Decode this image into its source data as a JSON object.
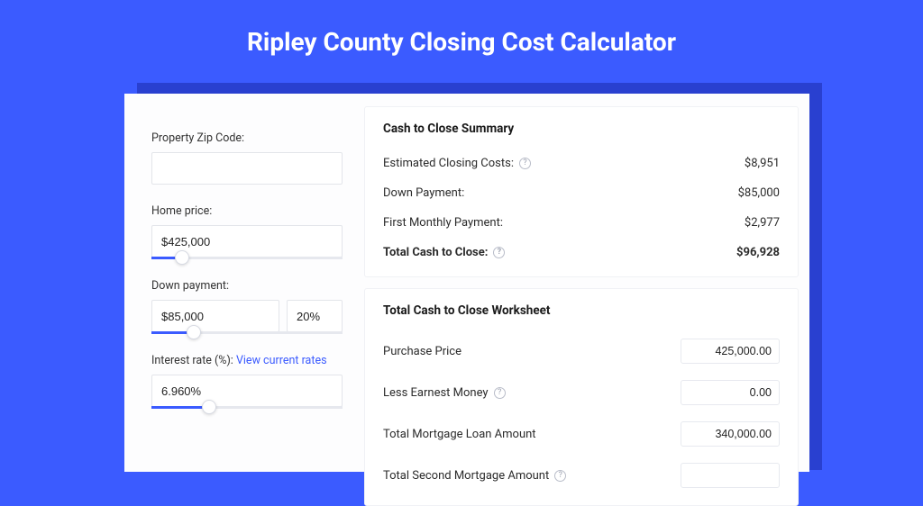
{
  "page": {
    "title": "Ripley County Closing Cost Calculator",
    "bg_color": "#3b5bff",
    "card_bg": "#fdfdfe",
    "shadow_color": "#2940d0"
  },
  "inputs": {
    "zip": {
      "label": "Property Zip Code:",
      "value": ""
    },
    "home_price": {
      "label": "Home price:",
      "value": "$425,000",
      "slider_pct": 16
    },
    "down_payment": {
      "label": "Down payment:",
      "value": "$85,000",
      "pct_value": "20%",
      "slider_pct": 22
    },
    "interest_rate": {
      "label": "Interest rate (%): ",
      "link_text": "View current rates",
      "value": "6.960%",
      "slider_pct": 30
    }
  },
  "summary": {
    "title": "Cash to Close Summary",
    "rows": [
      {
        "label": "Estimated Closing Costs:",
        "help": true,
        "value": "$8,951",
        "bold": false
      },
      {
        "label": "Down Payment:",
        "help": false,
        "value": "$85,000",
        "bold": false
      },
      {
        "label": "First Monthly Payment:",
        "help": false,
        "value": "$2,977",
        "bold": false
      },
      {
        "label": "Total Cash to Close:",
        "help": true,
        "value": "$96,928",
        "bold": true
      }
    ]
  },
  "worksheet": {
    "title": "Total Cash to Close Worksheet",
    "rows": [
      {
        "label": "Purchase Price",
        "help": false,
        "value": "425,000.00"
      },
      {
        "label": "Less Earnest Money",
        "help": true,
        "value": "0.00"
      },
      {
        "label": "Total Mortgage Loan Amount",
        "help": false,
        "value": "340,000.00"
      },
      {
        "label": "Total Second Mortgage Amount",
        "help": true,
        "value": ""
      }
    ]
  },
  "style": {
    "input_border": "#e3e5ea",
    "slider_track": "#e6e8ee",
    "slider_fill": "#3b5bff",
    "help_border": "#b9bdc9",
    "link_color": "#3b5bff"
  }
}
